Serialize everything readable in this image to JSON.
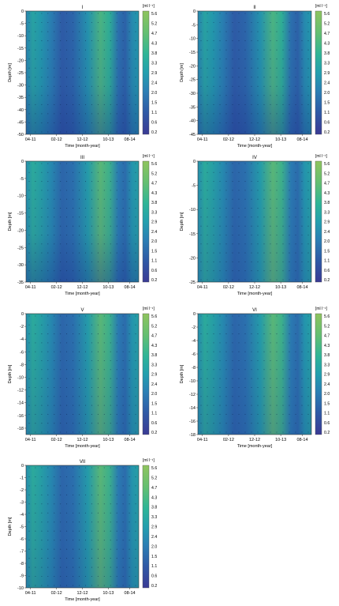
{
  "chart_data": [
    {
      "type": "heatmap",
      "title": "I",
      "xlabel": "Time [month-year]",
      "ylabel": "Depth [m]",
      "x_ticks": [
        "04-11",
        "02-12",
        "12-12",
        "10-13",
        "08-14"
      ],
      "y_ticks": [
        0,
        -5,
        -10,
        -15,
        -20,
        -25,
        -30,
        -35,
        -40,
        -45,
        -50
      ],
      "ylim": [
        -50,
        0
      ],
      "colorbar": {
        "label": "[ml l⁻¹]",
        "ticks": [
          5.6,
          5.2,
          4.7,
          4.3,
          3.8,
          3.3,
          2.9,
          2.4,
          2.0,
          1.5,
          1.1,
          0.6,
          0.2
        ]
      },
      "grid": false
    },
    {
      "type": "heatmap",
      "title": "II",
      "xlabel": "Time [month-year]",
      "ylabel": "Depth [m]",
      "x_ticks": [
        "04-11",
        "02-12",
        "12-12",
        "10-13",
        "08-14"
      ],
      "y_ticks": [
        0,
        -5,
        -10,
        -15,
        -20,
        -25,
        -30,
        -35,
        -40,
        -45
      ],
      "ylim": [
        -45,
        0
      ],
      "colorbar": {
        "label": "[ml l⁻¹]",
        "ticks": [
          5.6,
          5.2,
          4.7,
          4.3,
          3.8,
          3.3,
          2.9,
          2.4,
          2.0,
          1.5,
          1.1,
          0.6,
          0.2
        ]
      },
      "grid": false
    },
    {
      "type": "heatmap",
      "title": "III",
      "xlabel": "Time [month-year]",
      "ylabel": "Depth [m]",
      "x_ticks": [
        "04-11",
        "02-12",
        "12-12",
        "10-13",
        "08-14"
      ],
      "y_ticks": [
        0,
        -5,
        -10,
        -15,
        -20,
        -25,
        -30,
        -35
      ],
      "ylim": [
        -35,
        0
      ],
      "colorbar": {
        "label": "[ml l⁻¹]",
        "ticks": [
          5.6,
          5.2,
          4.7,
          4.3,
          3.8,
          3.3,
          2.9,
          2.4,
          2.0,
          1.5,
          1.1,
          0.6,
          0.2
        ]
      },
      "grid": false
    },
    {
      "type": "heatmap",
      "title": "IV",
      "xlabel": "Time [month-year]",
      "ylabel": "Depth [m]",
      "x_ticks": [
        "04-11",
        "02-12",
        "12-12",
        "10-13",
        "08-14"
      ],
      "y_ticks": [
        0,
        -5,
        -10,
        -15,
        -20,
        -25
      ],
      "ylim": [
        -25,
        0
      ],
      "colorbar": {
        "label": "[ml l⁻¹]",
        "ticks": [
          5.6,
          5.2,
          4.7,
          4.3,
          3.8,
          3.3,
          2.9,
          2.4,
          2.0,
          1.5,
          1.1,
          0.6,
          0.2
        ]
      },
      "grid": false
    },
    {
      "type": "heatmap",
      "title": "V",
      "xlabel": "Time [month-year]",
      "ylabel": "Depth [m]",
      "x_ticks": [
        "04-11",
        "02-12",
        "12-12",
        "10-13",
        "08-14"
      ],
      "y_ticks": [
        0,
        -2,
        -4,
        -6,
        -8,
        -10,
        -12,
        -14,
        -16,
        -18
      ],
      "ylim": [
        -19,
        0
      ],
      "colorbar": {
        "label": "[ml l⁻¹]",
        "ticks": [
          5.6,
          5.2,
          4.7,
          4.3,
          3.8,
          3.3,
          2.9,
          2.4,
          2.0,
          1.5,
          1.1,
          0.6,
          0.2
        ]
      },
      "grid": false
    },
    {
      "type": "heatmap",
      "title": "VI",
      "xlabel": "Time [month-year]",
      "ylabel": "Depth [m]",
      "x_ticks": [
        "04-11",
        "02-12",
        "12-12",
        "10-13",
        "08-14"
      ],
      "y_ticks": [
        0,
        -2,
        -4,
        -6,
        -8,
        -10,
        -12,
        -14,
        -16,
        -18
      ],
      "ylim": [
        -18,
        0
      ],
      "colorbar": {
        "label": "[ml l⁻¹]",
        "ticks": [
          5.6,
          5.2,
          4.7,
          4.3,
          3.8,
          3.3,
          2.9,
          2.4,
          2.0,
          1.5,
          1.1,
          0.6,
          0.2
        ]
      },
      "grid": false
    },
    {
      "type": "heatmap",
      "title": "VII",
      "xlabel": "Time [month-year]",
      "ylabel": "Depth [m]",
      "x_ticks": [
        "04-11",
        "02-12",
        "12-12",
        "10-13",
        "08-14"
      ],
      "y_ticks": [
        0,
        -1,
        -2,
        -3,
        -4,
        -5,
        -6,
        -7,
        -8,
        -9,
        -10
      ],
      "ylim": [
        -10,
        0
      ],
      "colorbar": {
        "label": "[ml l⁻¹]",
        "ticks": [
          5.6,
          5.2,
          4.7,
          4.3,
          3.8,
          3.3,
          2.9,
          2.4,
          2.0,
          1.5,
          1.1,
          0.6,
          0.2
        ]
      },
      "grid": false
    }
  ]
}
